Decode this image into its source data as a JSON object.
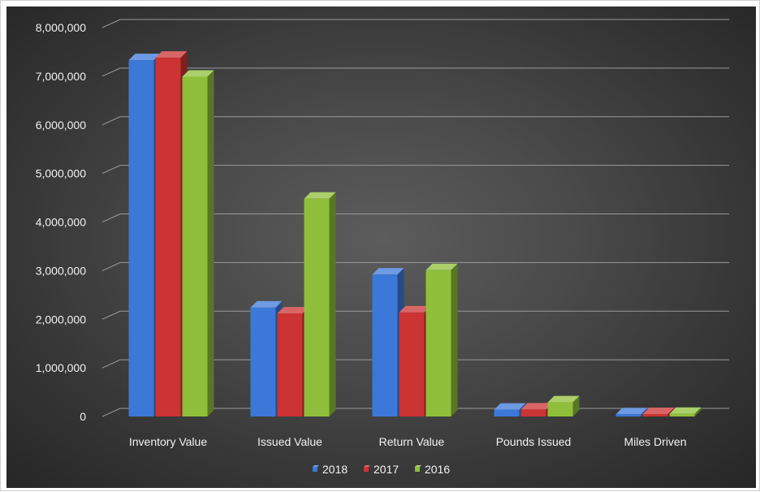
{
  "chart_data": {
    "type": "bar",
    "title": "",
    "xlabel": "",
    "ylabel": "",
    "categories": [
      "Inventory Value",
      "Issued Value",
      "Return Value",
      "Pounds Issued",
      "Miles Driven"
    ],
    "series": [
      {
        "name": "2018",
        "color": "#3c78d8",
        "values": [
          7330000,
          2240000,
          2920000,
          140000,
          45000
        ]
      },
      {
        "name": "2017",
        "color": "#cc3333",
        "values": [
          7380000,
          2120000,
          2140000,
          145000,
          50000
        ]
      },
      {
        "name": "2016",
        "color": "#8fbf3a",
        "values": [
          6990000,
          4480000,
          3010000,
          290000,
          55000
        ]
      }
    ],
    "ylim": [
      0,
      8000000
    ],
    "yticks": [
      "0",
      "1,000,000",
      "2,000,000",
      "3,000,000",
      "4,000,000",
      "5,000,000",
      "6,000,000",
      "7,000,000",
      "8,000,000"
    ],
    "grid": true,
    "legend_position": "bottom",
    "style": "3d-column"
  }
}
